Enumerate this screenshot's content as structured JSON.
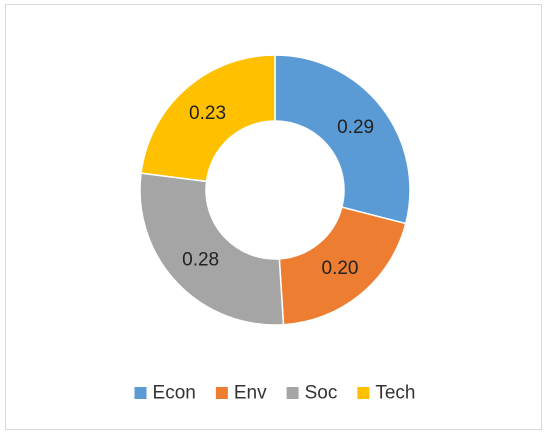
{
  "chart_data": {
    "type": "pie",
    "variant": "donut",
    "title": "",
    "series": [
      {
        "labels": [
          "Econ",
          "Env",
          "Soc",
          "Tech"
        ],
        "values": [
          0.29,
          0.2,
          0.28,
          0.23
        ],
        "data_labels": [
          "0.29",
          "0.20",
          "0.28",
          "0.23"
        ],
        "colors": [
          "#5b9bd5",
          "#ed7d31",
          "#a5a5a5",
          "#ffc000"
        ]
      }
    ],
    "legend": {
      "position": "bottom",
      "entries": [
        "Econ",
        "Env",
        "Soc",
        "Tech"
      ]
    },
    "start_angle": "12 o'clock",
    "direction": "clockwise"
  }
}
